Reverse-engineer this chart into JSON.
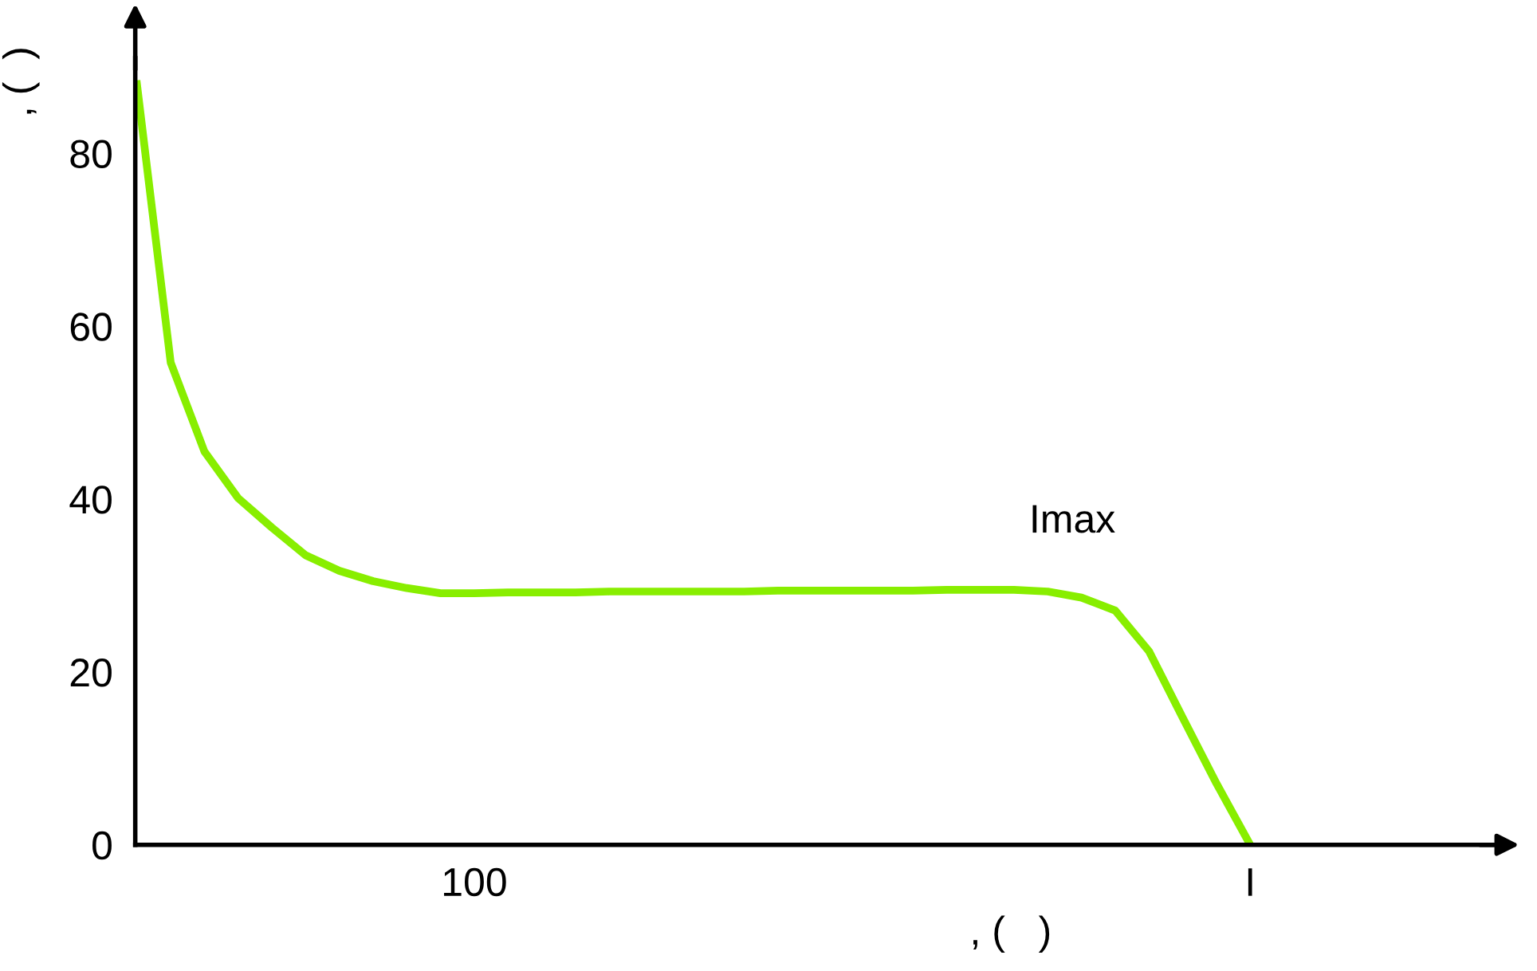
{
  "chart_data": {
    "type": "line",
    "xlabel": ", (   )",
    "ylabel": ", (  )",
    "categories": [
      null,
      null,
      null,
      null,
      null,
      null,
      null,
      null,
      null,
      null,
      "100",
      null,
      null,
      null,
      null,
      null,
      null,
      null,
      null,
      null,
      null,
      null,
      null,
      null,
      null,
      null,
      null,
      null,
      null,
      null,
      null,
      null,
      null,
      "I",
      null,
      null,
      null,
      null,
      null,
      null,
      null
    ],
    "series": [
      {
        "color": "#88ee00",
        "values": [
          88,
          55.8,
          45.5,
          40.1,
          36.7,
          33.5,
          31.7,
          30.5,
          29.7,
          29.1,
          29.1,
          29.2,
          29.2,
          29.2,
          29.3,
          29.3,
          29.3,
          29.3,
          29.3,
          29.4,
          29.4,
          29.4,
          29.4,
          29.4,
          29.5,
          29.5,
          29.5,
          29.3,
          28.6,
          27.1,
          22.4,
          14.7,
          7.1,
          0,
          null,
          null,
          null,
          null,
          null,
          null,
          null
        ]
      }
    ],
    "ylim": [
      0,
      91
    ],
    "yticks": [
      0,
      20,
      40,
      60,
      80
    ],
    "annotations": [
      "Imax"
    ],
    "grid": false,
    "legend": false
  }
}
